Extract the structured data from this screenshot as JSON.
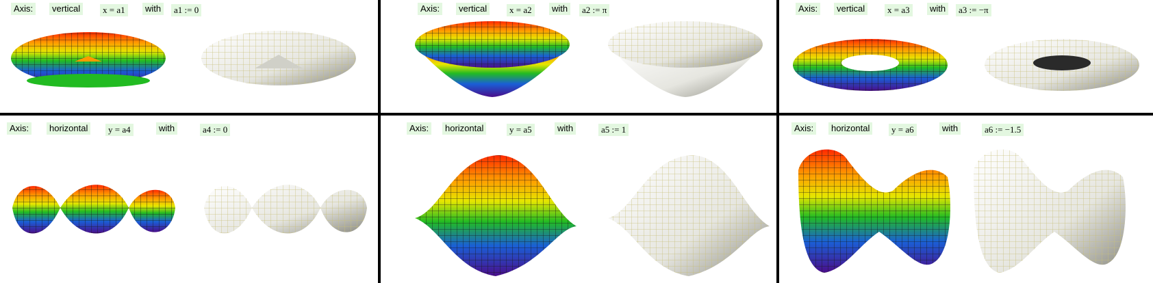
{
  "panels": [
    {
      "axis_label": "Axis:",
      "axis_value": "vertical",
      "eq": "x = a1",
      "with": "with",
      "param": "a1 := 0"
    },
    {
      "axis_label": "Axis:",
      "axis_value": "vertical",
      "eq": "x = a2",
      "with": "with",
      "param": "a2 := π"
    },
    {
      "axis_label": "Axis:",
      "axis_value": "vertical",
      "eq": "x = a3",
      "with": "with",
      "param": "a3 := −π"
    },
    {
      "axis_label": "Axis:",
      "axis_value": "horizontal",
      "eq": "y = a4",
      "with": "with",
      "param": "a4 := 0"
    },
    {
      "axis_label": "Axis:",
      "axis_value": "horizontal",
      "eq": "y = a5",
      "with": "with",
      "param": "a5 := 1"
    },
    {
      "axis_label": "Axis:",
      "axis_value": "horizontal",
      "eq": "y = a6",
      "with": "with",
      "param": "a6 := −1.5"
    }
  ],
  "colors": {
    "chip_bg": "#e3f7e0",
    "divider": "#000000",
    "grid_line": "#c8c07a",
    "surface_white": "#f2f2ee"
  }
}
